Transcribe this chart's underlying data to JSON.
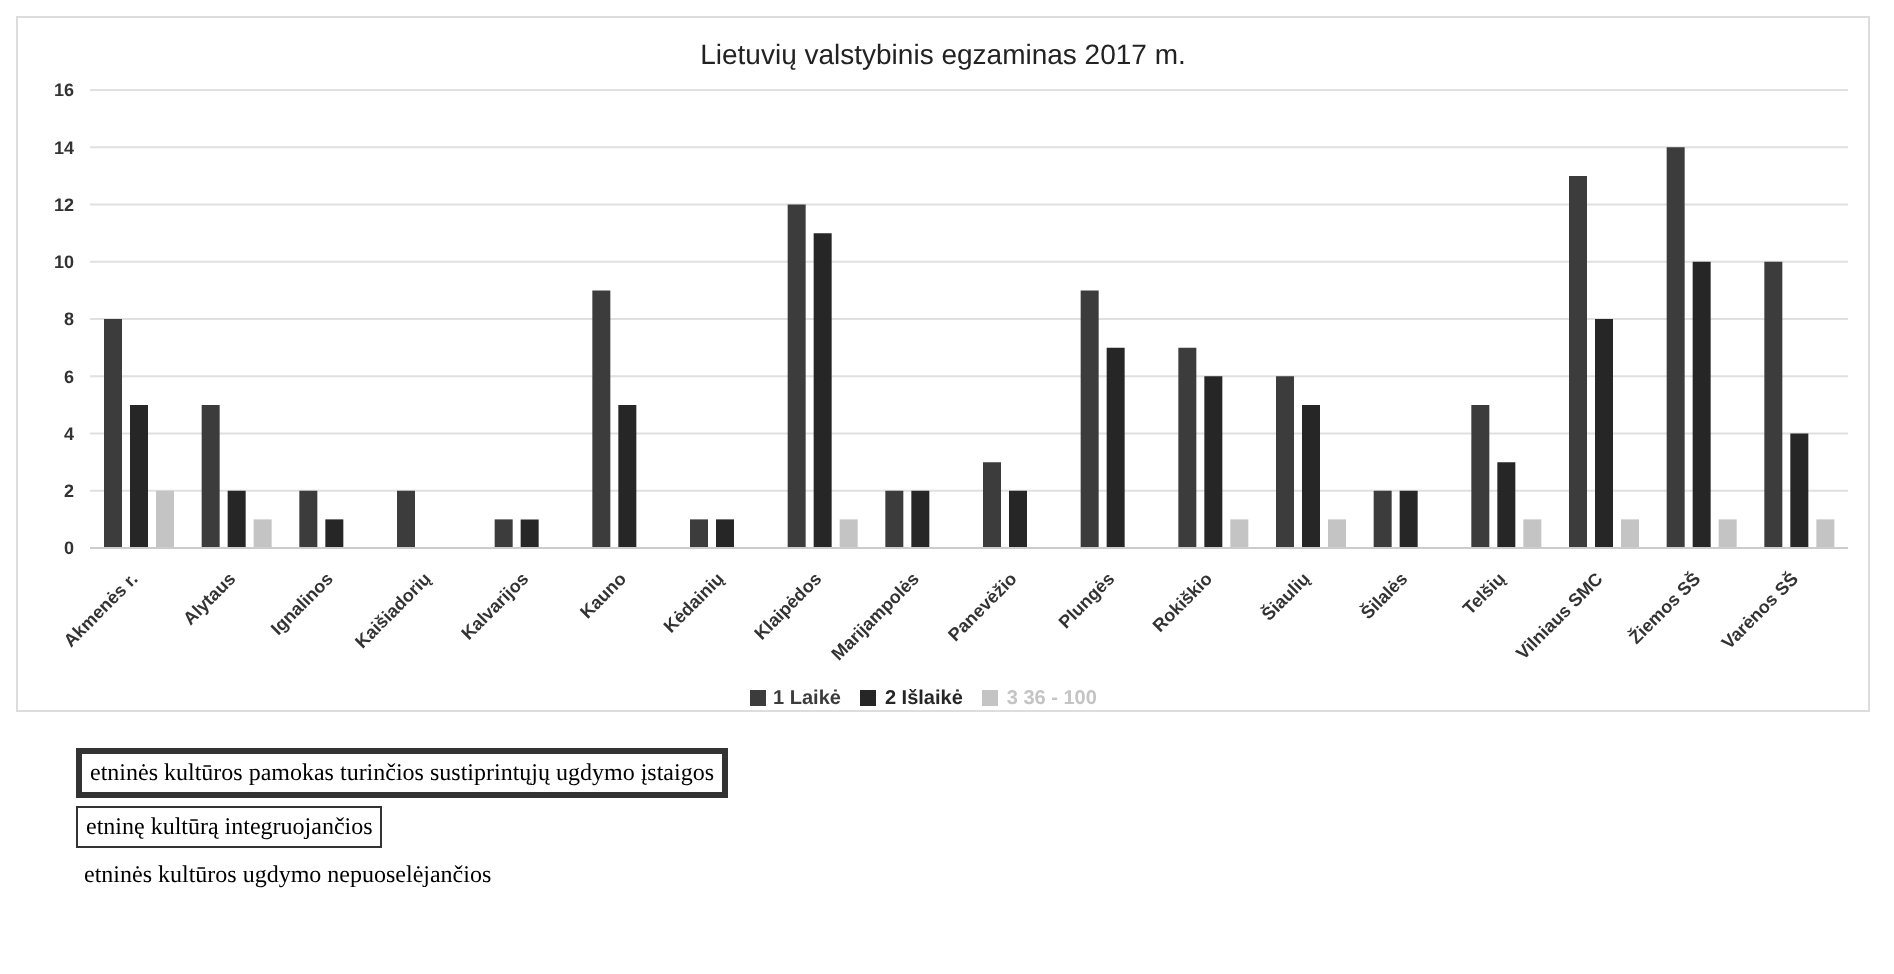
{
  "chart_data": {
    "type": "bar",
    "title": "Lietuvių valstybinis egzaminas 2017 m.",
    "categories": [
      "Akmenės r.",
      "Alytaus",
      "Ignalinos",
      "Kaišiadorių",
      "Kalvarijos",
      "Kauno",
      "Kėdainių",
      "Klaipėdos",
      "Marijampolės",
      "Panevėžio",
      "Plungės",
      "Rokiškio",
      "Šiaulių",
      "Šilalės",
      "Telšių",
      "Vilniaus SMC",
      "Žiemos SŠ",
      "Varėnos SŠ"
    ],
    "series": [
      {
        "name": "1 Laikė",
        "color": "#3c3c3c",
        "values": [
          8,
          5,
          2,
          2,
          1,
          9,
          1,
          12,
          2,
          3,
          9,
          7,
          6,
          2,
          5,
          13,
          14,
          10
        ]
      },
      {
        "name": "2 Išlaikė",
        "color": "#262626",
        "values": [
          5,
          2,
          1,
          0,
          1,
          5,
          1,
          11,
          2,
          2,
          7,
          6,
          5,
          2,
          3,
          8,
          10,
          4
        ]
      },
      {
        "name": "3 36 - 100",
        "color": "#c4c4c4",
        "values": [
          2,
          1,
          null,
          null,
          null,
          null,
          null,
          1,
          null,
          null,
          null,
          1,
          1,
          null,
          1,
          1,
          1,
          1
        ]
      }
    ],
    "ylim": [
      0,
      16
    ],
    "yticks": [
      0,
      2,
      4,
      6,
      8,
      10,
      12,
      14,
      16
    ],
    "grid": "y",
    "legend": "bottom",
    "annotations": [
      "etninės kultūros pamokas turinčios sustiprintųjų ugdymo įstaigos",
      "etninę kultūrą integruojančios",
      "etninės kultūros ugdymo nepuoselėjančios"
    ]
  }
}
